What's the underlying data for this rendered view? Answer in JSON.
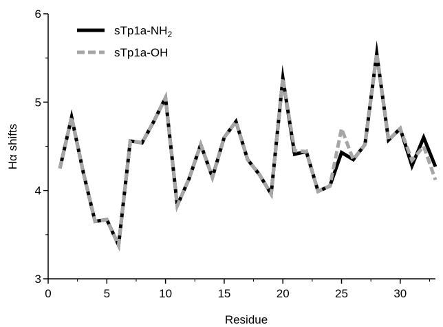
{
  "chart_data": {
    "type": "line",
    "xlabel": "Residue",
    "ylabel": "Hα shifts",
    "xlim": [
      0,
      33
    ],
    "ylim": [
      3,
      6
    ],
    "xticks": [
      0,
      5,
      10,
      15,
      20,
      25,
      30
    ],
    "yticks": [
      3,
      4,
      5,
      6
    ],
    "grid": false,
    "legend_position": "top-left",
    "x": [
      1,
      2,
      3,
      4,
      5,
      6,
      7,
      8,
      9,
      10,
      11,
      12,
      13,
      14,
      15,
      16,
      17,
      18,
      19,
      20,
      21,
      22,
      23,
      24,
      25,
      26,
      27,
      28,
      29,
      30,
      31,
      32,
      33
    ],
    "series": [
      {
        "name": "sTp1a-NH",
        "name_subscript": "2",
        "color": "#000000",
        "style": "solid",
        "values": [
          4.25,
          4.83,
          4.2,
          3.65,
          3.67,
          3.38,
          4.56,
          4.54,
          4.78,
          5.05,
          3.83,
          4.13,
          4.52,
          4.15,
          4.6,
          4.78,
          4.35,
          4.18,
          3.96,
          5.27,
          4.41,
          4.44,
          3.99,
          4.05,
          4.43,
          4.35,
          4.52,
          5.55,
          4.57,
          4.7,
          4.28,
          4.6,
          4.27
        ]
      },
      {
        "name": "sTp1a-OH",
        "color": "#a6a6a6",
        "style": "dashed",
        "values": [
          4.25,
          4.83,
          4.2,
          3.65,
          3.67,
          3.38,
          4.56,
          4.54,
          4.78,
          5.05,
          3.83,
          4.13,
          4.52,
          4.15,
          4.6,
          4.78,
          4.35,
          4.18,
          3.96,
          5.27,
          4.45,
          4.44,
          3.99,
          4.05,
          4.7,
          4.35,
          4.52,
          5.55,
          4.57,
          4.7,
          4.34,
          4.5,
          4.12
        ]
      }
    ]
  }
}
